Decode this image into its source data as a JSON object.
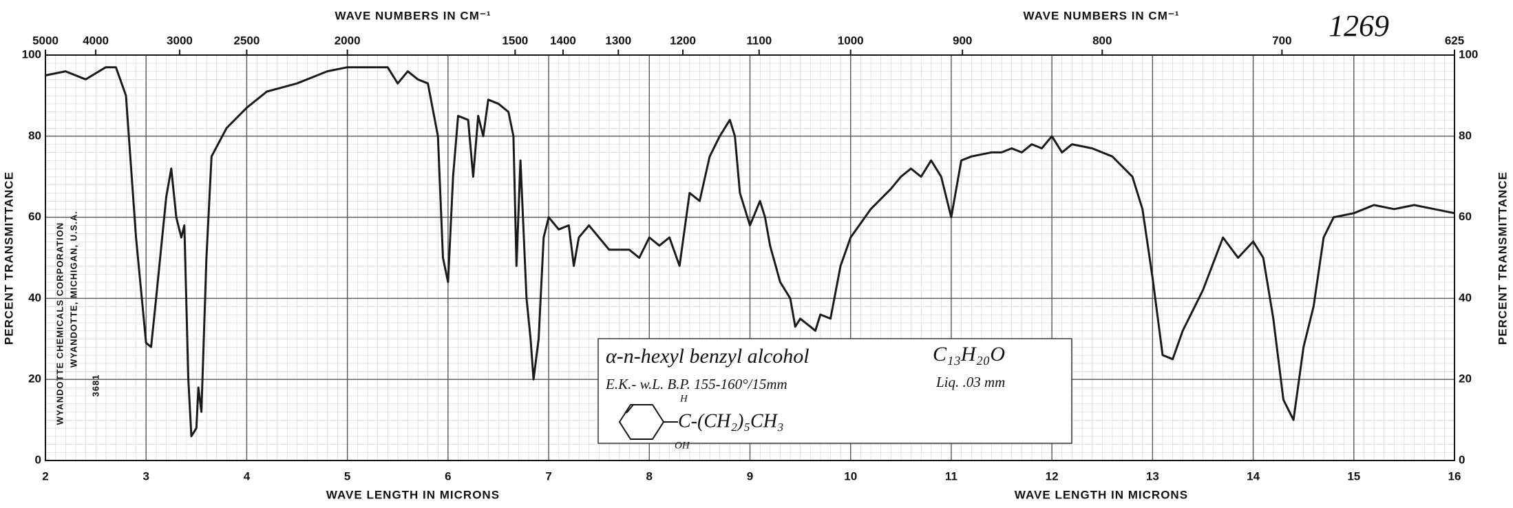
{
  "chart_data": {
    "type": "line",
    "xlabel": "WAVE LENGTH IN MICRONS",
    "x2label": "WAVE NUMBERS IN CM⁻¹",
    "ylabel": "PERCENT TRANSMITTANCE",
    "xlim": [
      2,
      16
    ],
    "xticks": [
      2,
      3,
      4,
      5,
      6,
      7,
      8,
      9,
      10,
      11,
      12,
      13,
      14,
      15,
      16
    ],
    "x2ticks": [
      5000,
      4000,
      3000,
      2500,
      2000,
      1500,
      1400,
      1300,
      1200,
      1100,
      1000,
      900,
      800,
      700,
      625
    ],
    "ylim": [
      0,
      100
    ],
    "yticks": [
      0,
      20,
      40,
      60,
      80,
      100
    ],
    "grid": true,
    "x": [
      2.0,
      2.2,
      2.4,
      2.6,
      2.7,
      2.8,
      2.9,
      3.0,
      3.05,
      3.1,
      3.2,
      3.25,
      3.3,
      3.35,
      3.38,
      3.42,
      3.45,
      3.5,
      3.52,
      3.55,
      3.6,
      3.65,
      3.8,
      4.0,
      4.2,
      4.5,
      4.8,
      5.0,
      5.2,
      5.4,
      5.5,
      5.6,
      5.7,
      5.8,
      5.9,
      5.95,
      6.0,
      6.05,
      6.1,
      6.2,
      6.25,
      6.3,
      6.35,
      6.4,
      6.5,
      6.6,
      6.65,
      6.68,
      6.72,
      6.78,
      6.82,
      6.85,
      6.9,
      6.95,
      7.0,
      7.1,
      7.2,
      7.25,
      7.3,
      7.4,
      7.5,
      7.6,
      7.8,
      7.9,
      8.0,
      8.1,
      8.2,
      8.3,
      8.4,
      8.5,
      8.6,
      8.7,
      8.8,
      8.85,
      8.9,
      9.0,
      9.1,
      9.15,
      9.2,
      9.3,
      9.4,
      9.45,
      9.5,
      9.6,
      9.65,
      9.7,
      9.8,
      9.9,
      10.0,
      10.2,
      10.4,
      10.5,
      10.6,
      10.7,
      10.8,
      10.9,
      11.0,
      11.1,
      11.2,
      11.4,
      11.5,
      11.6,
      11.7,
      11.8,
      11.9,
      12.0,
      12.1,
      12.2,
      12.4,
      12.6,
      12.8,
      12.9,
      13.0,
      13.1,
      13.2,
      13.3,
      13.5,
      13.7,
      13.85,
      14.0,
      14.1,
      14.2,
      14.3,
      14.4,
      14.5,
      14.6,
      14.7,
      14.8,
      15.0,
      15.2,
      15.4,
      15.6,
      15.8,
      16.0
    ],
    "series": [
      {
        "color": "#1a1a1a",
        "values": [
          95,
          96,
          94,
          97,
          97,
          90,
          55,
          29,
          28,
          40,
          65,
          72,
          60,
          55,
          58,
          20,
          6,
          8,
          18,
          12,
          50,
          75,
          82,
          87,
          91,
          93,
          96,
          97,
          97,
          97,
          93,
          96,
          94,
          93,
          80,
          50,
          44,
          70,
          85,
          84,
          70,
          85,
          80,
          89,
          88,
          86,
          80,
          48,
          74,
          40,
          30,
          20,
          30,
          55,
          60,
          57,
          58,
          48,
          55,
          58,
          55,
          52,
          52,
          50,
          55,
          53,
          55,
          48,
          66,
          64,
          75,
          80,
          84,
          80,
          66,
          58,
          64,
          60,
          53,
          44,
          40,
          33,
          35,
          33,
          32,
          36,
          35,
          48,
          55,
          62,
          67,
          70,
          72,
          70,
          74,
          70,
          60,
          74,
          75,
          76,
          76,
          77,
          76,
          78,
          77,
          80,
          76,
          78,
          77,
          75,
          70,
          62,
          45,
          26,
          25,
          32,
          42,
          55,
          50,
          54,
          50,
          35,
          15,
          10,
          28,
          38,
          55,
          60,
          61,
          63,
          62,
          63,
          62,
          61
        ]
      }
    ],
    "sample_number": "1269",
    "compound": "α-n-hexyl benzyl alcohol",
    "formula": "C₁₃H₂₀O",
    "conditions": "E.K.- w.L.   B.P. 155-160°/15mm",
    "cell": "Liq. .03 mm",
    "structure_h": "H",
    "structure_chain": "C-(CH₂)₅CH₃",
    "structure_oh": "OH",
    "stamp_company": "WYANDOTTE CHEMICALS CORPORATION",
    "stamp_city": "WYANDOTTE, MICHIGAN, U.S.A.",
    "stamp_number": "3681"
  }
}
